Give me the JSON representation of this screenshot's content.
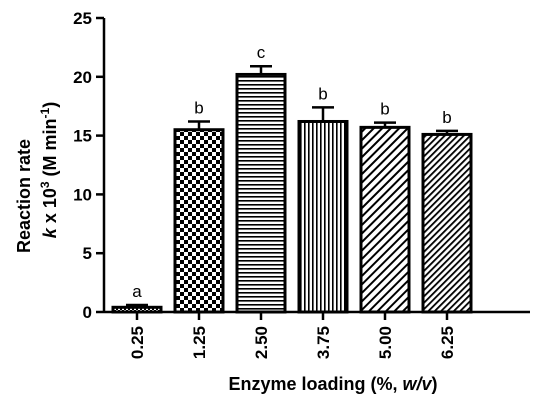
{
  "chart_data": {
    "type": "bar",
    "categories": [
      "0.25",
      "1.25",
      "2.50",
      "3.75",
      "5.00",
      "6.25"
    ],
    "values": [
      0.4,
      15.5,
      20.2,
      16.2,
      15.7,
      15.1
    ],
    "error_upper": [
      0.6,
      16.2,
      20.9,
      17.4,
      16.1,
      15.4
    ],
    "significance_letters": [
      "a",
      "b",
      "c",
      "b",
      "b",
      "b"
    ],
    "patterns": [
      "fine-dots",
      "checker",
      "horizontal-lines",
      "vertical-lines",
      "diagonal-lines",
      "diagonal-lines-dense"
    ],
    "xlabel": {
      "prefix": "Enzyme loading (%, ",
      "italic": "w/v",
      "suffix": ")"
    },
    "ylabel": {
      "line1": "Reaction rate",
      "line2_italic": "k",
      "line2_mid": " x 10",
      "line2_sup": "3",
      "line2_after": " (M min",
      "line2_sup2": "-1",
      "line2_end": ")"
    },
    "yticks": [
      "0",
      "5",
      "10",
      "15",
      "20",
      "25"
    ],
    "ylim": [
      0,
      25
    ],
    "grid": false,
    "legend": "none",
    "colors": {
      "bar_stroke": "#000000",
      "bar_fill": "#ffffff",
      "pattern": "#000000"
    }
  }
}
